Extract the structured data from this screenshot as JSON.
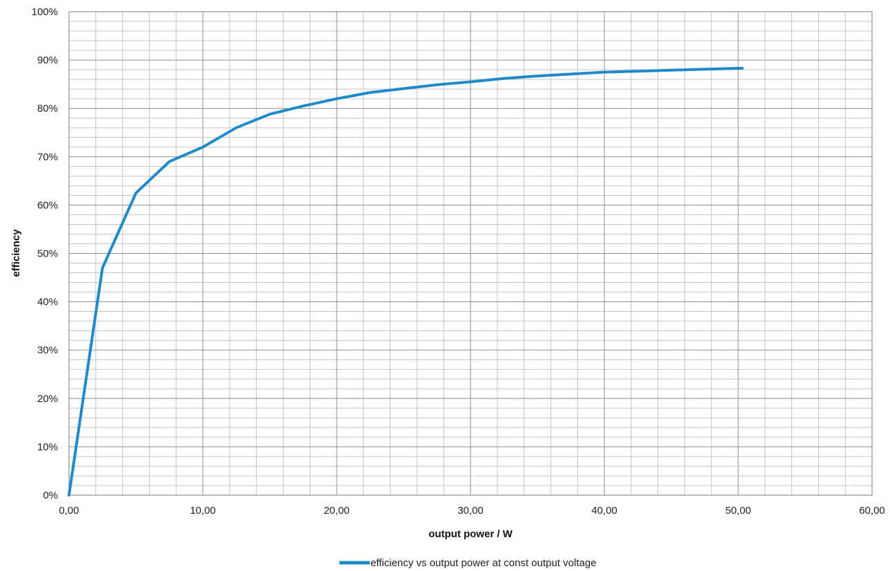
{
  "chart_data": {
    "type": "line",
    "title": "",
    "xlabel": "output power / W",
    "ylabel": "efficiency",
    "xlim": [
      0,
      60
    ],
    "ylim": [
      0,
      100
    ],
    "x_ticks": [
      "0,00",
      "10,00",
      "20,00",
      "30,00",
      "40,00",
      "50,00",
      "60,00"
    ],
    "y_ticks": [
      "0%",
      "10%",
      "20%",
      "30%",
      "40%",
      "50%",
      "60%",
      "70%",
      "80%",
      "90%",
      "100%"
    ],
    "grid": true,
    "legend_position": "bottom",
    "series": [
      {
        "name": "efficiency vs output power at const output voltage",
        "color": "#1f8ac9",
        "points": [
          [
            0,
            0
          ],
          [
            2.5,
            47
          ],
          [
            5,
            62.5
          ],
          [
            7.5,
            69
          ],
          [
            10,
            72
          ],
          [
            12.5,
            76
          ],
          [
            15,
            78.8
          ],
          [
            17.5,
            80.5
          ],
          [
            20,
            82
          ],
          [
            22.5,
            83.3
          ],
          [
            25,
            84.1
          ],
          [
            27.5,
            84.9
          ],
          [
            30,
            85.5
          ],
          [
            32.5,
            86.2
          ],
          [
            35,
            86.7
          ],
          [
            37.5,
            87.1
          ],
          [
            40,
            87.5
          ],
          [
            42.5,
            87.7
          ],
          [
            45,
            87.9
          ],
          [
            47.5,
            88.1
          ],
          [
            50,
            88.3
          ],
          [
            50.3,
            88.3
          ]
        ]
      }
    ]
  }
}
